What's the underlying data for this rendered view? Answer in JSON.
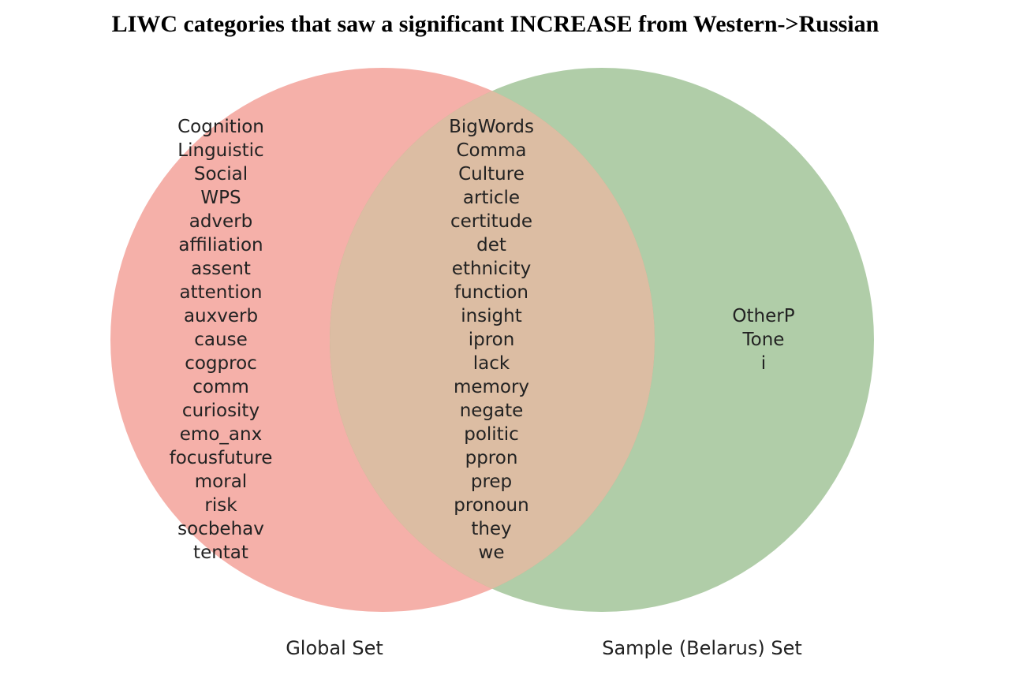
{
  "title": "LIWC categories that saw a significant INCREASE from Western->Russian",
  "colors": {
    "set_a": "#f08a80",
    "set_b": "#80ae72",
    "overlap": "#dcbda3"
  },
  "sets": {
    "a_label": "Global Set",
    "b_label": "Sample (Belarus) Set"
  },
  "regions": {
    "only_a": [
      "Cognition",
      "Linguistic",
      "Social",
      "WPS",
      "adverb",
      "affiliation",
      "assent",
      "attention",
      "auxverb",
      "cause",
      "cogproc",
      "comm",
      "curiosity",
      "emo_anx",
      "focusfuture",
      "moral",
      "risk",
      "socbehav",
      "tentat"
    ],
    "both": [
      "BigWords",
      "Comma",
      "Culture",
      "article",
      "certitude",
      "det",
      "ethnicity",
      "function",
      "insight",
      "ipron",
      "lack",
      "memory",
      "negate",
      "politic",
      "ppron",
      "prep",
      "pronoun",
      "they",
      "we"
    ],
    "only_b": [
      "OtherP",
      "Tone",
      "i"
    ]
  }
}
